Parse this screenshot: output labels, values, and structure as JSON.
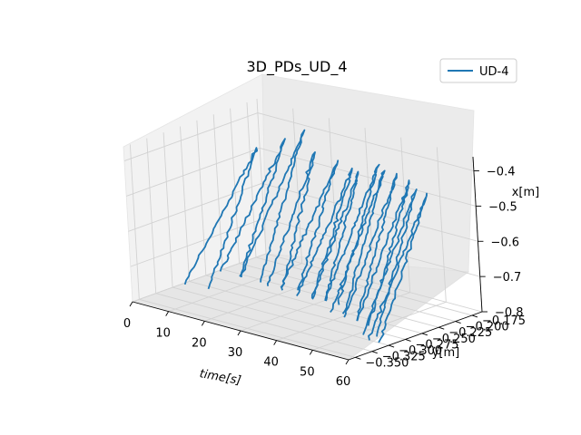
{
  "chart_data": {
    "type": "line",
    "projection": "3d",
    "title": "3D_PDs_UD_4",
    "xlabel": "time[s]",
    "ylabel": "y[m]",
    "zlabel": "x[m]",
    "xlim": [
      0,
      60
    ],
    "ylim": [
      -0.36,
      -0.16
    ],
    "zlim": [
      -0.8,
      -0.36
    ],
    "xticks": [
      0,
      10,
      20,
      30,
      40,
      50,
      60
    ],
    "yticks": [
      -0.175,
      -0.2,
      -0.225,
      -0.25,
      -0.275,
      -0.3,
      -0.325,
      -0.35
    ],
    "zticks": [
      -0.4,
      -0.5,
      -0.6,
      -0.7,
      -0.8
    ],
    "xtick_labels": [
      "0",
      "10",
      "20",
      "30",
      "40",
      "50",
      "60"
    ],
    "ytick_labels": [
      "−0.175",
      "−0.200",
      "−0.225",
      "−0.250",
      "−0.275",
      "−0.300",
      "−0.325",
      "−0.350"
    ],
    "ztick_labels": [
      "−0.4",
      "−0.5",
      "−0.6",
      "−0.7",
      "−0.8"
    ],
    "grid": true,
    "legend": "top-right",
    "series": [
      {
        "name": "UD-4",
        "color": "#1f77b4",
        "cycles": [
          {
            "t0": 3.5,
            "t1": 10.0,
            "bottom": [
              -0.78,
              -0.3
            ],
            "top": [
              -0.45,
              -0.2
            ]
          },
          {
            "t0": 10.0,
            "t1": 15.5,
            "bottom": [
              -0.74,
              -0.28
            ],
            "top": [
              -0.42,
              -0.19
            ]
          },
          {
            "t0": 15.5,
            "t1": 21.0,
            "bottom": [
              -0.74,
              -0.28
            ],
            "top": [
              -0.38,
              -0.19
            ]
          },
          {
            "t0": 21.0,
            "t1": 25.0,
            "bottom": [
              -0.76,
              -0.27
            ],
            "top": [
              -0.42,
              -0.2
            ]
          },
          {
            "t0": 25.0,
            "t1": 29.5,
            "bottom": [
              -0.75,
              -0.27
            ],
            "top": [
              -0.44,
              -0.19
            ]
          },
          {
            "t0": 29.5,
            "t1": 33.5,
            "bottom": [
              -0.76,
              -0.27
            ],
            "top": [
              -0.45,
              -0.19
            ]
          },
          {
            "t0": 33.5,
            "t1": 37.0,
            "bottom": [
              -0.76,
              -0.27
            ],
            "top": [
              -0.44,
              -0.2
            ]
          },
          {
            "t0": 37.0,
            "t1": 40.5,
            "bottom": [
              -0.76,
              -0.27
            ],
            "top": [
              -0.42,
              -0.19
            ]
          },
          {
            "t0": 40.5,
            "t1": 44.0,
            "bottom": [
              -0.77,
              -0.28
            ],
            "top": [
              -0.42,
              -0.2
            ]
          },
          {
            "t0": 44.0,
            "t1": 47.5,
            "bottom": [
              -0.78,
              -0.28
            ],
            "top": [
              -0.42,
              -0.2
            ]
          },
          {
            "t0": 47.5,
            "t1": 51.0,
            "bottom": [
              -0.78,
              -0.28
            ],
            "top": [
              -0.43,
              -0.2
            ]
          },
          {
            "t0": 51.0,
            "t1": 54.5,
            "bottom": [
              -0.8,
              -0.29
            ],
            "top": [
              -0.44,
              -0.21
            ]
          },
          {
            "t0": 54.5,
            "t1": 57.5,
            "bottom": [
              -0.8,
              -0.3
            ],
            "top": [
              -0.44,
              -0.21
            ]
          }
        ]
      }
    ]
  }
}
